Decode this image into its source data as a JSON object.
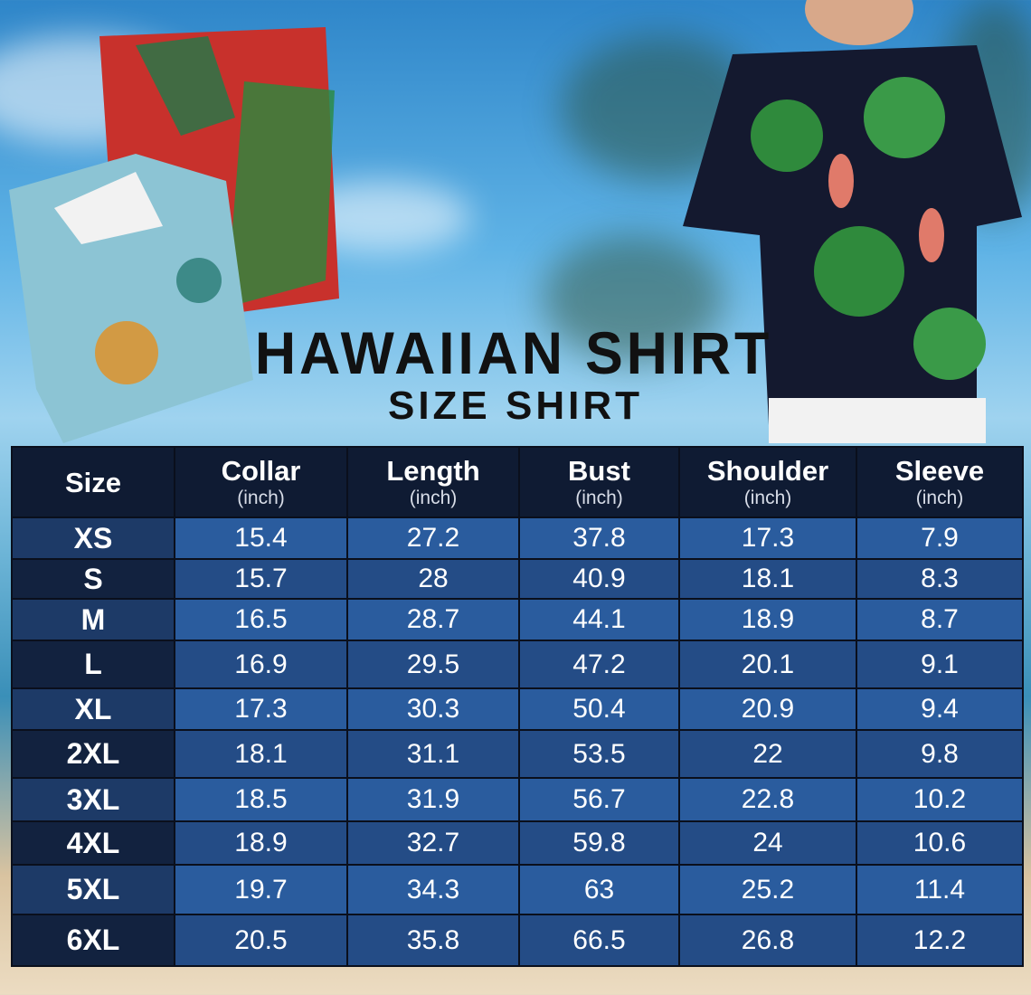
{
  "title": "HAWAIIAN SHIRT",
  "subtitle": "SIZE SHIRT",
  "colors": {
    "header": "#0f1b33",
    "row_light": "#2a5c9e",
    "row_dark": "#244c86",
    "size_col_light": "#1d3a67",
    "size_col_dark": "#12223f"
  },
  "table": {
    "headers": [
      {
        "label": "Size",
        "unit": ""
      },
      {
        "label": "Collar",
        "unit": "(inch)"
      },
      {
        "label": "Length",
        "unit": "(inch)"
      },
      {
        "label": "Bust",
        "unit": "(inch)"
      },
      {
        "label": "Shoulder",
        "unit": "(inch)"
      },
      {
        "label": "Sleeve",
        "unit": "(inch)"
      }
    ],
    "rows": [
      [
        "XS",
        "15.4",
        "27.2",
        "37.8",
        "17.3",
        "7.9"
      ],
      [
        "S",
        "15.7",
        "28",
        "40.9",
        "18.1",
        "8.3"
      ],
      [
        "M",
        "16.5",
        "28.7",
        "44.1",
        "18.9",
        "8.7"
      ],
      [
        "L",
        "16.9",
        "29.5",
        "47.2",
        "20.1",
        "9.1"
      ],
      [
        "XL",
        "17.3",
        "30.3",
        "50.4",
        "20.9",
        "9.4"
      ],
      [
        "2XL",
        "18.1",
        "31.1",
        "53.5",
        "22",
        "9.8"
      ],
      [
        "3XL",
        "18.5",
        "31.9",
        "56.7",
        "22.8",
        "10.2"
      ],
      [
        "4XL",
        "18.9",
        "32.7",
        "59.8",
        "24",
        "10.6"
      ],
      [
        "5XL",
        "19.7",
        "34.3",
        "63",
        "25.2",
        "11.4"
      ],
      [
        "6XL",
        "20.5",
        "35.8",
        "66.5",
        "26.8",
        "12.2"
      ]
    ]
  }
}
